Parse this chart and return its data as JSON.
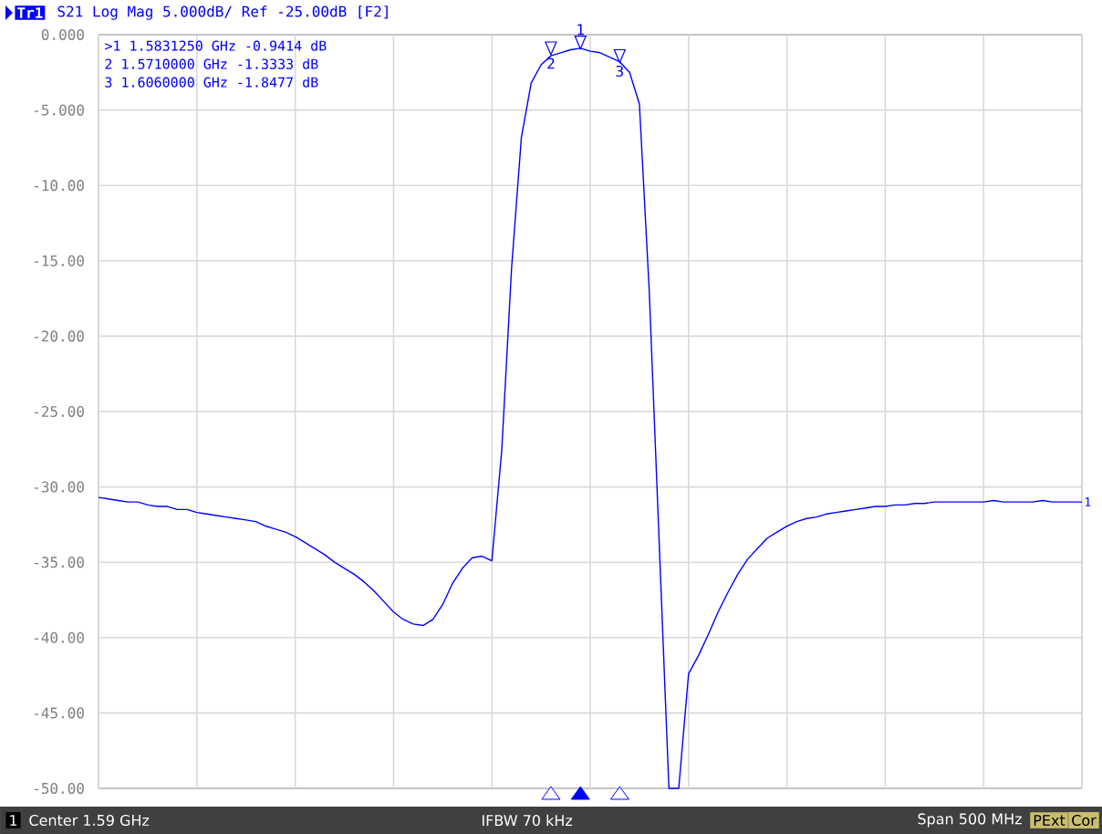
{
  "chart_data": {
    "type": "line",
    "title": "S21 Log Mag 5.000dB/ Ref -25.00dB [F2]",
    "categories": [
      null,
      null,
      null,
      null,
      null,
      null,
      null,
      null,
      null,
      null,
      null,
      null,
      null,
      null,
      null,
      null,
      null,
      null,
      null,
      null,
      null,
      null,
      null,
      null,
      null,
      null,
      null,
      null,
      null,
      null,
      null,
      null,
      null,
      null,
      null,
      null,
      null,
      null,
      null,
      null,
      null,
      null,
      null,
      null,
      null,
      null,
      null,
      null,
      null,
      null,
      null,
      null,
      null,
      null,
      null,
      null,
      null,
      null,
      null,
      null,
      null,
      null,
      null,
      null,
      null,
      null,
      null,
      null,
      null,
      null,
      null,
      null,
      null,
      null,
      null,
      null,
      null,
      null,
      null,
      null,
      null,
      null,
      null,
      null,
      null,
      null,
      null,
      null,
      null,
      null,
      null,
      null,
      null,
      null,
      null,
      null,
      null,
      null,
      null,
      null,
      null
    ],
    "series": [
      {
        "name": "Tr1",
        "color": "#0000ff",
        "values": [
          -30.7,
          -30.8,
          -30.9,
          -31.0,
          -31.0,
          -31.2,
          -31.3,
          -31.3,
          -31.5,
          -31.5,
          -31.7,
          -31.8,
          -31.9,
          -32.0,
          -32.1,
          -32.2,
          -32.3,
          -32.6,
          -32.8,
          -33.0,
          -33.3,
          -33.7,
          -34.1,
          -34.5,
          -35.0,
          -35.4,
          -35.8,
          -36.3,
          -36.9,
          -37.6,
          -38.3,
          -38.8,
          -39.1,
          -39.2,
          -38.8,
          -37.8,
          -36.4,
          -35.4,
          -34.7,
          -34.6,
          -34.9,
          -27.6,
          -15.5,
          -6.8,
          -3.2,
          -2.0,
          -1.4,
          -1.2,
          -1.0,
          -0.9,
          -1.1,
          -1.2,
          -1.5,
          -1.8,
          -2.5,
          -4.6,
          -17.0,
          -33.5,
          -50.0,
          -50.0,
          -42.4,
          -41.2,
          -39.8,
          -38.3,
          -37.0,
          -35.8,
          -34.8,
          -34.1,
          -33.4,
          -33.0,
          -32.6,
          -32.3,
          -32.1,
          -32.0,
          -31.8,
          -31.7,
          -31.6,
          -31.5,
          -31.4,
          -31.3,
          -31.3,
          -31.2,
          -31.2,
          -31.1,
          -31.1,
          -31.0,
          -31.0,
          -31.0,
          -31.0,
          -31.0,
          -31.0,
          -30.9,
          -31.0,
          -31.0,
          -31.0,
          -31.0,
          -30.9,
          -31.0,
          -31.0,
          -31.0,
          -31.0
        ]
      }
    ],
    "ylim": [
      -50,
      0
    ],
    "yticks": [
      {
        "value": 0,
        "label": "0.000"
      },
      {
        "value": -5,
        "label": "-5.000"
      },
      {
        "value": -10,
        "label": "-10.00"
      },
      {
        "value": -15,
        "label": "-15.00"
      },
      {
        "value": -20,
        "label": "-20.00"
      },
      {
        "value": -25,
        "label": "-25.00"
      },
      {
        "value": -30,
        "label": "-30.00"
      },
      {
        "value": -35,
        "label": "-35.00"
      },
      {
        "value": -40,
        "label": "-40.00"
      },
      {
        "value": -45,
        "label": "-45.00"
      },
      {
        "value": -50,
        "label": "-50.00"
      }
    ],
    "tick_labels": "y",
    "grid": true,
    "marker": "none",
    "line_style": "solid",
    "annotations": [
      ">1 1.5831250 GHz -0.9414 dB",
      "2 1.5710000 GHz -1.3333 dB",
      "3 1.6060000 GHz -1.8477 dB",
      {
        "text": "1",
        "y": -0.9414
      },
      {
        "text": "2",
        "y": -1.3333
      },
      {
        "text": "3",
        "y": -1.8477
      },
      "1",
      "1",
      "Center 1.59 GHz",
      "IFBW 70 kHz",
      "Span 500 MHz",
      "PExt",
      "Cor"
    ]
  }
}
